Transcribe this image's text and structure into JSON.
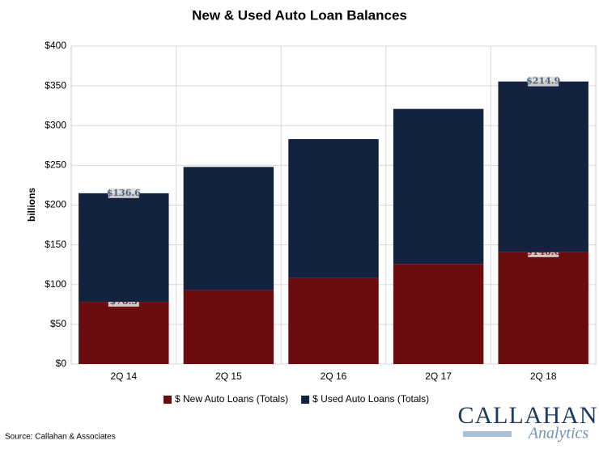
{
  "chart_data": {
    "type": "stacked-bar",
    "title": "New & Used Auto Loan Balances",
    "y_label": "billions",
    "categories": [
      "2Q 14",
      "2Q 15",
      "2Q 16",
      "2Q 17",
      "2Q 18"
    ],
    "series": [
      {
        "name": "$ New Auto Loans (Totals)",
        "color": "#6b0c0f",
        "values": [
          78.3,
          93,
          108,
          126,
          140.6
        ],
        "value_labels": [
          "$78.3",
          null,
          null,
          null,
          "$140.6"
        ]
      },
      {
        "name": "$ Used Auto Loans (Totals)",
        "color": "#13223f",
        "values": [
          136.6,
          155,
          175,
          195,
          214.9
        ],
        "value_labels": [
          "$136.6",
          null,
          null,
          null,
          "$214.9"
        ]
      }
    ],
    "ylim": [
      0,
      400
    ],
    "yticks": [
      {
        "value": 0,
        "label": "$0"
      },
      {
        "value": 50,
        "label": "$50"
      },
      {
        "value": 100,
        "label": "$100"
      },
      {
        "value": 150,
        "label": "$150"
      },
      {
        "value": 200,
        "label": "$200"
      },
      {
        "value": 250,
        "label": "$250"
      },
      {
        "value": 300,
        "label": "$300"
      },
      {
        "value": 350,
        "label": "$350"
      },
      {
        "value": 400,
        "label": "$400"
      }
    ],
    "grid": true,
    "legend": "bottom"
  },
  "source": "Source: Callahan & Associates",
  "logo": {
    "name": "CALLAHAN",
    "tagline": "Analytics"
  }
}
